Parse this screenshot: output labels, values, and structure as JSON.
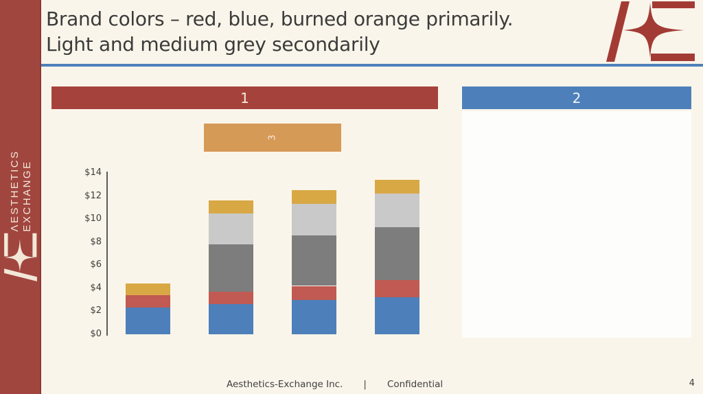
{
  "slide": {
    "title_line1": "Brand colors – red, blue, burned orange primarily.",
    "title_line2": "Light and medium grey secondarily",
    "page_number": "4"
  },
  "sidebar": {
    "brand_line1": "ΛESTHETICS",
    "brand_line2": "EXCHANGE"
  },
  "shapes": {
    "box1_label": "1",
    "box2_label": "2",
    "box3_label": "3"
  },
  "footer": {
    "company": "Aesthetics-Exchange Inc.",
    "divider": "|",
    "confidential": "Confidential"
  },
  "colors": {
    "background_cream": "#faf5ea",
    "sidebar_red": "#a1463f",
    "brand_logo_red": "#a33b35",
    "brand_logo_cream": "#f2e8d8",
    "accent_blue_rule": "#4e81bb",
    "box_red": "#a6423c",
    "box_blue": "#4d80ba",
    "box_orange": "#d69a57",
    "box_label_cream": "#f3ecdc",
    "box_label_blue_white": "#eef3fa",
    "panel_white": "#fdfdfc"
  },
  "chart_data": {
    "type": "bar",
    "stacked": true,
    "title": "",
    "xlabel": "",
    "ylabel": "",
    "categories": [
      "",
      "",
      "",
      ""
    ],
    "series": [
      {
        "name": "blue",
        "color": "#4d7fba",
        "values": [
          2.3,
          2.6,
          3.0,
          3.2
        ]
      },
      {
        "name": "red",
        "color": "#c05a52",
        "values": [
          1.1,
          1.1,
          1.2,
          1.5
        ]
      },
      {
        "name": "medium-grey",
        "color": "#7d7d7d",
        "values": [
          0,
          4.1,
          4.4,
          4.6
        ]
      },
      {
        "name": "light-grey",
        "color": "#c9c9c9",
        "values": [
          0,
          2.7,
          2.7,
          2.9
        ]
      },
      {
        "name": "gold",
        "color": "#d8a845",
        "values": [
          1.0,
          1.1,
          1.2,
          1.2
        ]
      }
    ],
    "totals": [
      4.4,
      11.6,
      12.5,
      13.4
    ],
    "yticks": [
      0,
      2,
      4,
      6,
      8,
      10,
      12,
      14
    ],
    "ytick_prefix": "$",
    "ylim": [
      0,
      14
    ],
    "grid": false,
    "legend": "none"
  }
}
